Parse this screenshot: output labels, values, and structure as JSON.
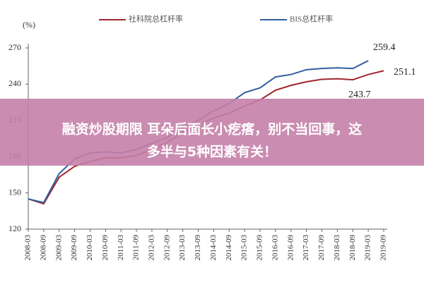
{
  "chart_data": {
    "type": "line",
    "unit_label": "(%)",
    "categories": [
      "2008-03",
      "2008-09",
      "2009-03",
      "2009-09",
      "2010-03",
      "2010-09",
      "2011-03",
      "2011-09",
      "2012-03",
      "2012-09",
      "2013-03",
      "2013-09",
      "2014-03",
      "2014-09",
      "2015-03",
      "2015-09",
      "2016-03",
      "2016-09",
      "2017-03",
      "2017-09",
      "2018-03",
      "2018-09",
      "2019-03",
      "2019-09"
    ],
    "series": [
      {
        "name": "社科院总杠杆率",
        "color": "#a0272d",
        "values": [
          145,
          141,
          163,
          172,
          176,
          179,
          179,
          181,
          186,
          192,
          200,
          206,
          212,
          216,
          222,
          227,
          235,
          239,
          242,
          244,
          244.5,
          243.7,
          248,
          251.1
        ]
      },
      {
        "name": "BIS总杠杆率",
        "color": "#2f5f9e",
        "values": [
          145,
          142,
          166,
          178,
          183,
          184,
          183,
          186,
          191,
          196,
          204,
          210,
          218,
          224,
          233,
          237,
          246,
          248,
          252,
          253,
          253.5,
          253,
          259.4,
          null
        ]
      }
    ],
    "annotations": [
      "259.4",
      "251.1",
      "243.7"
    ],
    "ylim": [
      120,
      270
    ],
    "yticks": [
      120,
      150,
      180,
      210,
      240,
      270
    ],
    "banner": {
      "lines": [
        "融资炒股期限 耳朵后面长小疙瘩，别不当回事，这",
        "多半与5种因素有关！"
      ]
    }
  }
}
